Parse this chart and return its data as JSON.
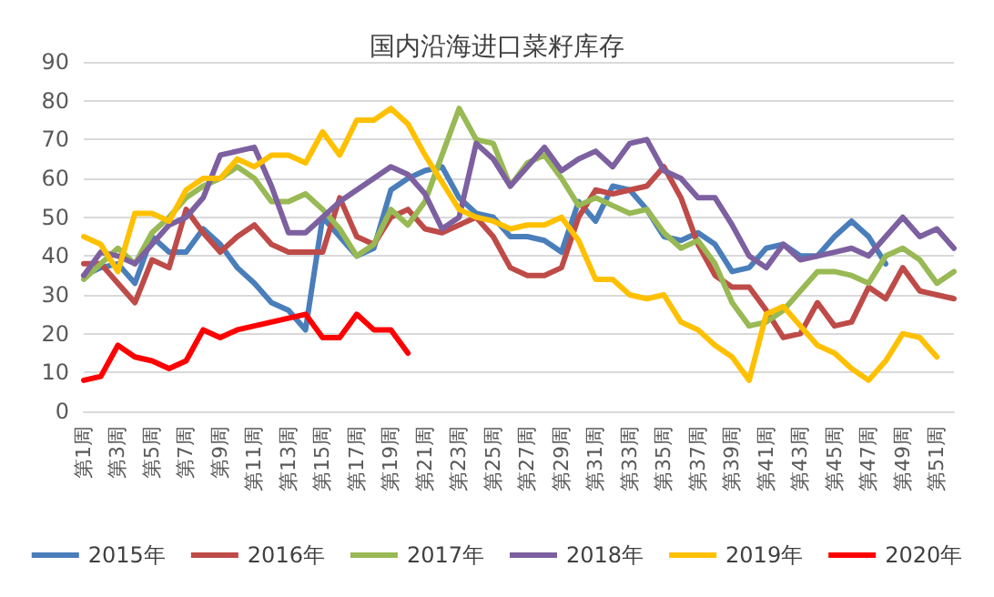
{
  "chart_data": {
    "type": "line",
    "title": "国内沿海进口菜籽库存",
    "categories": [
      "第1周",
      null,
      "第3周",
      null,
      "第5周",
      null,
      "第7周",
      null,
      "第9周",
      null,
      "第11周",
      null,
      "第13周",
      null,
      "第15周",
      null,
      "第17周",
      null,
      "第19周",
      null,
      "第21周",
      null,
      "第23周",
      null,
      "第25周",
      null,
      "第27周",
      null,
      "第29周",
      null,
      "第31周",
      null,
      "第33周",
      null,
      "第35周",
      null,
      "第37周",
      null,
      "第39周",
      null,
      "第41周",
      null,
      "第43周",
      null,
      "第45周",
      null,
      "第47周",
      null,
      "第49周",
      null,
      "第51周",
      null
    ],
    "series": [
      {
        "name": "2015年",
        "color": "#4a7ebb",
        "values": [
          35,
          37,
          38,
          33,
          45,
          41,
          41,
          47,
          43,
          37,
          33,
          28,
          26,
          21,
          50,
          45,
          40,
          42,
          57,
          60,
          62,
          63,
          55,
          51,
          50,
          45,
          45,
          44,
          41,
          54,
          49,
          58,
          57,
          52,
          45,
          44,
          46,
          43,
          36,
          37,
          42,
          43,
          40,
          40,
          45,
          49,
          45,
          38,
          null,
          null,
          null,
          null
        ]
      },
      {
        "name": "2016年",
        "color": "#be4b48",
        "values": [
          38,
          38,
          33,
          28,
          39,
          37,
          52,
          46,
          41,
          45,
          48,
          43,
          41,
          41,
          41,
          55,
          45,
          43,
          50,
          52,
          47,
          46,
          48,
          50,
          45,
          37,
          35,
          35,
          37,
          50,
          57,
          56,
          57,
          58,
          63,
          55,
          43,
          35,
          32,
          32,
          26,
          19,
          20,
          28,
          22,
          23,
          32,
          29,
          37,
          31,
          30,
          29
        ]
      },
      {
        "name": "2017年",
        "color": "#98b954",
        "values": [
          34,
          38,
          42,
          38,
          46,
          50,
          55,
          58,
          60,
          63,
          60,
          54,
          54,
          56,
          52,
          47,
          40,
          43,
          52,
          48,
          54,
          66,
          78,
          70,
          69,
          58,
          64,
          66,
          60,
          53,
          55,
          53,
          51,
          52,
          46,
          42,
          44,
          38,
          28,
          22,
          23,
          26,
          31,
          36,
          36,
          35,
          33,
          40,
          42,
          39,
          33,
          36
        ]
      },
      {
        "name": "2018年",
        "color": "#7d60a0",
        "values": [
          35,
          41,
          40,
          38,
          43,
          48,
          50,
          55,
          66,
          67,
          68,
          58,
          46,
          46,
          50,
          54,
          57,
          60,
          63,
          61,
          56,
          47,
          50,
          69,
          65,
          58,
          63,
          68,
          62,
          65,
          67,
          63,
          69,
          70,
          62,
          60,
          55,
          55,
          48,
          40,
          37,
          43,
          39,
          40,
          41,
          42,
          40,
          45,
          50,
          45,
          47,
          42
        ]
      },
      {
        "name": "2019年",
        "color": "#ffc000",
        "values": [
          45,
          43,
          36,
          51,
          51,
          49,
          57,
          60,
          60,
          65,
          63,
          66,
          66,
          64,
          72,
          66,
          75,
          75,
          78,
          74,
          66,
          59,
          52,
          50,
          49,
          47,
          48,
          48,
          50,
          44,
          34,
          34,
          30,
          29,
          30,
          23,
          21,
          17,
          14,
          8,
          25,
          27,
          22,
          17,
          15,
          11,
          8,
          13,
          20,
          19,
          14,
          null
        ]
      },
      {
        "name": "2020年",
        "color": "#ff0000",
        "values": [
          8,
          9,
          17,
          14,
          13,
          11,
          13,
          21,
          19,
          21,
          22,
          23,
          24,
          25,
          19,
          19,
          25,
          21,
          21,
          15,
          null,
          null,
          null,
          null,
          null,
          null,
          null,
          null,
          null,
          null,
          null,
          null,
          null,
          null,
          null,
          null,
          null,
          null,
          null,
          null,
          null,
          null,
          null,
          null,
          null,
          null,
          null,
          null,
          null,
          null,
          null,
          null
        ]
      }
    ],
    "ylim": [
      0,
      90
    ],
    "yticks": [
      0,
      10,
      20,
      30,
      40,
      50,
      60,
      70,
      80,
      90
    ],
    "grid": "y",
    "legend": "bottom",
    "marker": "none",
    "line_style": "solid"
  }
}
